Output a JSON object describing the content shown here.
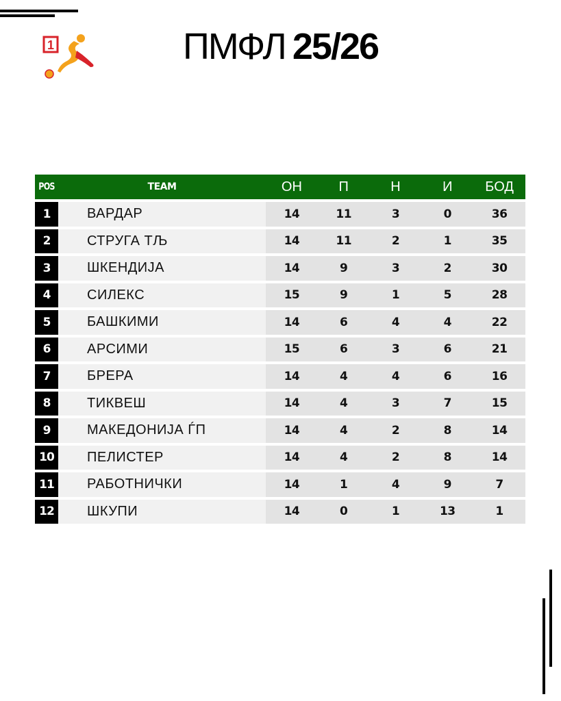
{
  "title": {
    "prefix": "ПМФЛ",
    "season": "25/26"
  },
  "logo": {
    "badge_text": "1",
    "icon": "futsal-player-logo-icon"
  },
  "colors": {
    "header_green": "#0b6b0b",
    "position_black": "#000000",
    "logo_red": "#d8232a",
    "logo_orange": "#f4a21c"
  },
  "table": {
    "headers": {
      "pos": "POS",
      "team": "TEAM",
      "played": "ОН",
      "won": "П",
      "drawn": "Н",
      "lost": "И",
      "points": "БОД"
    },
    "rows": [
      {
        "pos": "1",
        "team": "ВАРДАР",
        "played": "14",
        "won": "11",
        "drawn": "3",
        "lost": "0",
        "points": "36"
      },
      {
        "pos": "2",
        "team": "СТРУГА ТЉ",
        "played": "14",
        "won": "11",
        "drawn": "2",
        "lost": "1",
        "points": "35"
      },
      {
        "pos": "3",
        "team": "ШКЕНДИЈА",
        "played": "14",
        "won": "9",
        "drawn": "3",
        "lost": "2",
        "points": "30"
      },
      {
        "pos": "4",
        "team": "СИЛЕКС",
        "played": "15",
        "won": "9",
        "drawn": "1",
        "lost": "5",
        "points": "28"
      },
      {
        "pos": "5",
        "team": "БАШКИМИ",
        "played": "14",
        "won": "6",
        "drawn": "4",
        "lost": "4",
        "points": "22"
      },
      {
        "pos": "6",
        "team": "АРСИМИ",
        "played": "15",
        "won": "6",
        "drawn": "3",
        "lost": "6",
        "points": "21"
      },
      {
        "pos": "7",
        "team": "БРЕРА",
        "played": "14",
        "won": "4",
        "drawn": "4",
        "lost": "6",
        "points": "16"
      },
      {
        "pos": "8",
        "team": "ТИКВЕШ",
        "played": "14",
        "won": "4",
        "drawn": "3",
        "lost": "7",
        "points": "15"
      },
      {
        "pos": "9",
        "team": "МАКЕДОНИЈА ЃП",
        "played": "14",
        "won": "4",
        "drawn": "2",
        "lost": "8",
        "points": "14"
      },
      {
        "pos": "10",
        "team": "ПЕЛИСТЕР",
        "played": "14",
        "won": "4",
        "drawn": "2",
        "lost": "8",
        "points": "14"
      },
      {
        "pos": "11",
        "team": "РАБОТНИЧКИ",
        "played": "14",
        "won": "1",
        "drawn": "4",
        "lost": "9",
        "points": "7"
      },
      {
        "pos": "12",
        "team": "ШКУПИ",
        "played": "14",
        "won": "0",
        "drawn": "1",
        "lost": "13",
        "points": "1"
      }
    ]
  }
}
